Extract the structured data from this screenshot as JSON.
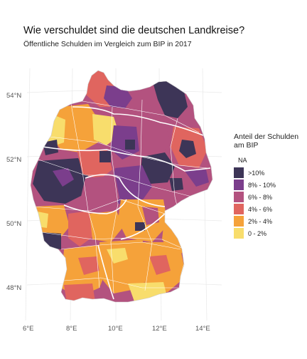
{
  "title": "Wie verschuldet sind die deutschen Landkreise?",
  "subtitle": "Öffentliche Schulden im Vergleich zum BIP in 2017",
  "legend": {
    "title": "Anteil der Schulden am BIP",
    "na_label": "NA",
    "items": [
      {
        "label": ">10%",
        "color": "#3d3557"
      },
      {
        "label": "8% - 10%",
        "color": "#7b3e8c"
      },
      {
        "label": "6% - 8%",
        "color": "#b3527f"
      },
      {
        "label": "4% - 6%",
        "color": "#e0655f"
      },
      {
        "label": "2% - 4%",
        "color": "#f5a23a"
      },
      {
        "label": "0 - 2%",
        "color": "#f8dd6c"
      }
    ]
  },
  "axes": {
    "x_ticks": [
      "6°E",
      "8°E",
      "10°E",
      "12°E",
      "14°E"
    ],
    "y_ticks": [
      "54°N",
      "52°N",
      "50°N",
      "48°N"
    ]
  }
}
